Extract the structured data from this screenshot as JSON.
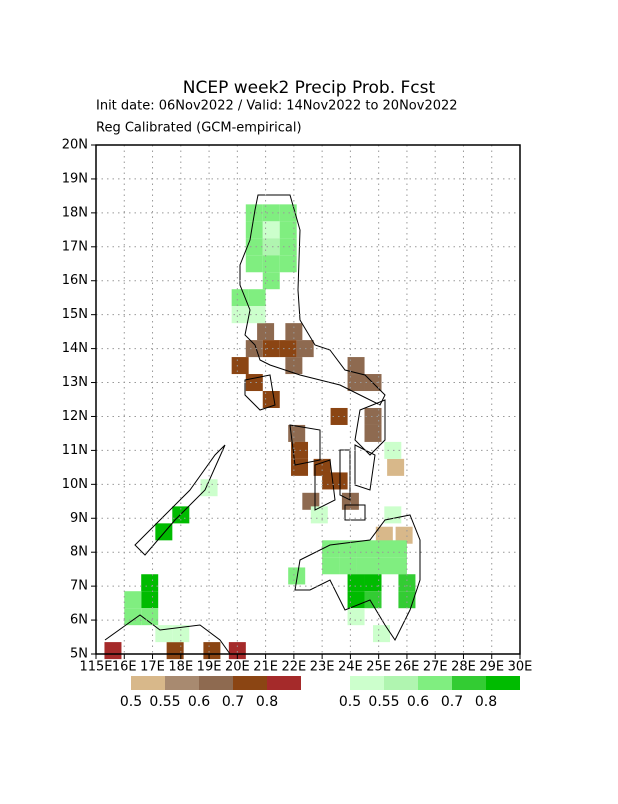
{
  "chart_data": {
    "type": "gridmap",
    "title": "NCEP week2 Precip Prob. Fcst",
    "subtitle": "Init date: 06Nov2022 / Valid: 14Nov2022 to 20Nov2022",
    "subtitle2": "Reg Calibrated (GCM-empirical)",
    "xlim": [
      115,
      130
    ],
    "ylim": [
      5,
      20
    ],
    "xticks": [
      {
        "value": 115,
        "label": "115E"
      },
      {
        "value": 116,
        "label": "16E"
      },
      {
        "value": 117,
        "label": "17E"
      },
      {
        "value": 118,
        "label": "18E"
      },
      {
        "value": 119,
        "label": "19E"
      },
      {
        "value": 120,
        "label": "20E"
      },
      {
        "value": 121,
        "label": "21E"
      },
      {
        "value": 122,
        "label": "22E"
      },
      {
        "value": 123,
        "label": "23E"
      },
      {
        "value": 124,
        "label": "24E"
      },
      {
        "value": 125,
        "label": "25E"
      },
      {
        "value": 126,
        "label": "26E"
      },
      {
        "value": 127,
        "label": "27E"
      },
      {
        "value": 128,
        "label": "28E"
      },
      {
        "value": 129,
        "label": "29E"
      },
      {
        "value": 130,
        "label": "30E"
      }
    ],
    "yticks": [
      {
        "value": 5,
        "label": "5N"
      },
      {
        "value": 6,
        "label": "6N"
      },
      {
        "value": 7,
        "label": "7N"
      },
      {
        "value": 8,
        "label": "8N"
      },
      {
        "value": 9,
        "label": "9N"
      },
      {
        "value": 10,
        "label": "10N"
      },
      {
        "value": 11,
        "label": "11N"
      },
      {
        "value": 12,
        "label": "12N"
      },
      {
        "value": 13,
        "label": "13N"
      },
      {
        "value": 14,
        "label": "14N"
      },
      {
        "value": 15,
        "label": "15N"
      },
      {
        "value": 16,
        "label": "16N"
      },
      {
        "value": 17,
        "label": "17N"
      },
      {
        "value": 18,
        "label": "18N"
      },
      {
        "value": 19,
        "label": "19N"
      },
      {
        "value": 20,
        "label": "20N"
      }
    ],
    "grid": true,
    "dry": {
      "levels": [
        0.5,
        0.55,
        0.6,
        0.7,
        0.8
      ],
      "colors": [
        "#d8b88a",
        "#a88a70",
        "#8e6a50",
        "#8b4513",
        "#a52a2a"
      ],
      "cells": [
        [
          121.0,
          14.5,
          0.6
        ],
        [
          120.6,
          14.0,
          0.6
        ],
        [
          121.2,
          14.0,
          0.7
        ],
        [
          121.8,
          14.0,
          0.7
        ],
        [
          122.4,
          14.0,
          0.6
        ],
        [
          122.0,
          14.5,
          0.6
        ],
        [
          120.1,
          13.5,
          0.7
        ],
        [
          120.6,
          13.0,
          0.7
        ],
        [
          121.2,
          12.5,
          0.7
        ],
        [
          122.0,
          13.5,
          0.6
        ],
        [
          124.2,
          13.5,
          0.6
        ],
        [
          124.8,
          13.0,
          0.6
        ],
        [
          124.2,
          13.0,
          0.6
        ],
        [
          123.6,
          12.0,
          0.7
        ],
        [
          124.8,
          12.0,
          0.6
        ],
        [
          124.8,
          11.5,
          0.6
        ],
        [
          122.1,
          11.5,
          0.6
        ],
        [
          122.2,
          11.0,
          0.7
        ],
        [
          122.2,
          10.5,
          0.7
        ],
        [
          123.0,
          10.5,
          0.7
        ],
        [
          123.3,
          10.1,
          0.7
        ],
        [
          123.6,
          10.1,
          0.7
        ],
        [
          122.6,
          9.5,
          0.6
        ],
        [
          124.0,
          9.5,
          0.6
        ],
        [
          125.6,
          10.5,
          0.5
        ],
        [
          125.2,
          8.5,
          0.5
        ],
        [
          125.9,
          8.5,
          0.5
        ],
        [
          115.6,
          5.1,
          0.8
        ],
        [
          117.8,
          5.1,
          0.7
        ],
        [
          119.1,
          5.1,
          0.7
        ],
        [
          120.0,
          5.1,
          0.8
        ]
      ]
    },
    "wet": {
      "levels": [
        0.5,
        0.55,
        0.6,
        0.7,
        0.8
      ],
      "colors": [
        "#ccffcc",
        "#b0f5b0",
        "#80ee80",
        "#33cc33",
        "#00bb00"
      ],
      "cells": [
        [
          120.6,
          18.0,
          0.6
        ],
        [
          121.2,
          18.0,
          0.6
        ],
        [
          121.8,
          18.0,
          0.6
        ],
        [
          120.6,
          17.5,
          0.6
        ],
        [
          121.2,
          17.5,
          0.5
        ],
        [
          121.8,
          17.5,
          0.6
        ],
        [
          120.6,
          17.0,
          0.6
        ],
        [
          121.2,
          17.0,
          0.55
        ],
        [
          121.8,
          17.0,
          0.6
        ],
        [
          120.6,
          16.5,
          0.6
        ],
        [
          121.2,
          16.5,
          0.6
        ],
        [
          121.8,
          16.5,
          0.6
        ],
        [
          121.2,
          16.0,
          0.6
        ],
        [
          120.1,
          15.5,
          0.6
        ],
        [
          120.7,
          15.5,
          0.6
        ],
        [
          120.1,
          15.0,
          0.5
        ],
        [
          120.7,
          15.0,
          0.5
        ],
        [
          125.5,
          11.0,
          0.5
        ],
        [
          123.3,
          8.1,
          0.6
        ],
        [
          123.9,
          8.1,
          0.6
        ],
        [
          124.5,
          8.1,
          0.6
        ],
        [
          125.1,
          8.1,
          0.6
        ],
        [
          125.7,
          8.1,
          0.6
        ],
        [
          123.3,
          7.6,
          0.6
        ],
        [
          123.9,
          7.6,
          0.6
        ],
        [
          124.5,
          7.6,
          0.6
        ],
        [
          125.1,
          7.6,
          0.6
        ],
        [
          125.7,
          7.6,
          0.6
        ],
        [
          122.1,
          7.3,
          0.6
        ],
        [
          124.2,
          7.1,
          0.8
        ],
        [
          124.8,
          7.1,
          0.8
        ],
        [
          126.0,
          7.1,
          0.7
        ],
        [
          124.2,
          6.6,
          0.8
        ],
        [
          124.8,
          6.6,
          0.7
        ],
        [
          126.0,
          6.6,
          0.7
        ],
        [
          124.2,
          6.1,
          0.5
        ],
        [
          125.1,
          5.6,
          0.5
        ],
        [
          122.9,
          9.1,
          0.5
        ],
        [
          125.5,
          9.1,
          0.5
        ],
        [
          119.0,
          9.9,
          0.5
        ],
        [
          118.0,
          9.1,
          0.8
        ],
        [
          117.4,
          8.6,
          0.8
        ],
        [
          116.9,
          7.1,
          0.8
        ],
        [
          116.9,
          6.6,
          0.8
        ],
        [
          116.3,
          6.6,
          0.6
        ],
        [
          116.3,
          6.1,
          0.6
        ],
        [
          116.9,
          6.1,
          0.6
        ],
        [
          117.4,
          5.6,
          0.5
        ],
        [
          118.0,
          5.6,
          0.5
        ]
      ]
    }
  }
}
